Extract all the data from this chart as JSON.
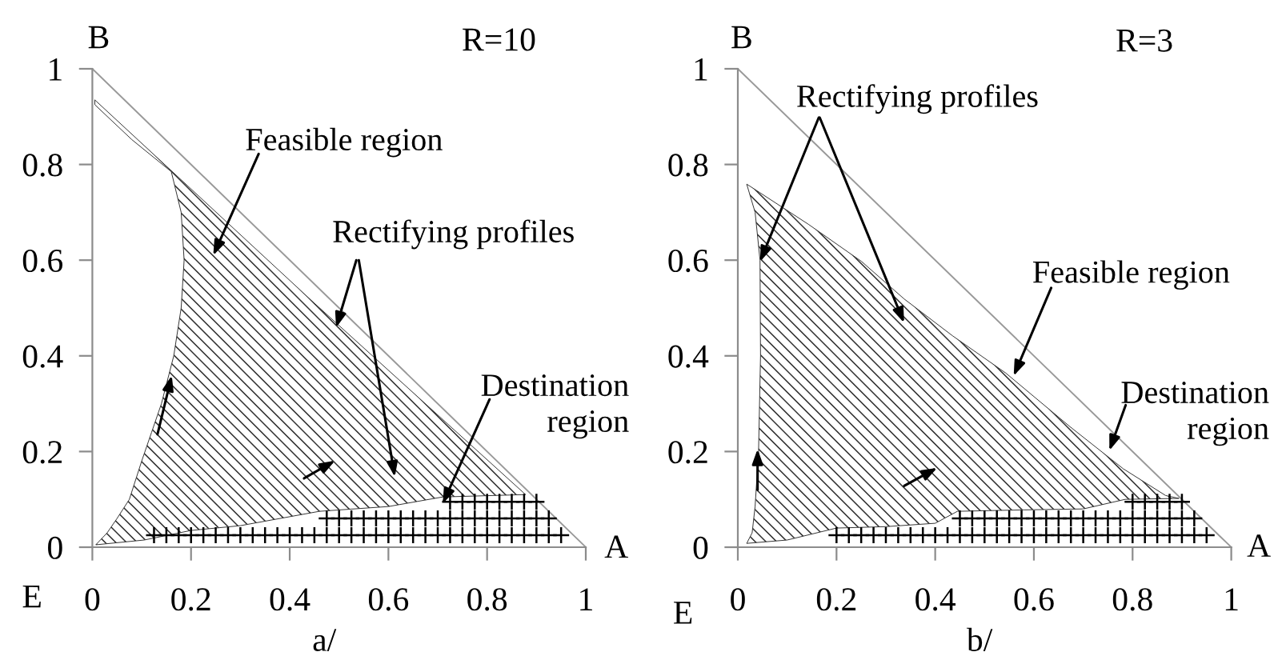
{
  "chart_data": [
    {
      "type": "line",
      "xlabel": "a/",
      "xlim": [
        0,
        1
      ],
      "ylim": [
        0,
        1
      ],
      "xticks": [
        0,
        0.2,
        0.4,
        0.6,
        0.8,
        1
      ],
      "yticks": [
        0,
        0.2,
        0.4,
        0.6,
        0.8,
        1
      ],
      "annotations": [
        "B",
        "R=10",
        "A",
        "E",
        "Feasible region",
        {
          "text": "Rectifying profiles",
          "x": 0.494,
          "y": 0.459
        },
        {
          "text": "Destination\nregion",
          "x": 0.71,
          "y": 0.091
        }
      ],
      "series": [
        {
          "color": "#999999",
          "x": [
            0,
            1
          ],
          "values": [
            1,
            0
          ]
        },
        {
          "type": "area",
          "color": "#303030",
          "x": [
            0.007,
            0.03,
            0.05,
            0.075,
            0.1,
            0.12,
            0.14,
            0.165,
            0.18,
            0.186,
            0.18,
            0.16,
            0.08,
            0.005,
            0.005,
            0.45,
            0.878,
            0.71,
            0.6,
            0.46,
            0.3,
            0.2,
            0.105
          ],
          "values": [
            0.005,
            0.03,
            0.06,
            0.1,
            0.18,
            0.24,
            0.3,
            0.4,
            0.5,
            0.6,
            0.7,
            0.785,
            0.852,
            0.925,
            0.935,
            0.51,
            0.11,
            0.105,
            0.085,
            0.075,
            0.045,
            0.035,
            0.015
          ]
        },
        {
          "type": "scatter",
          "color": "#000000",
          "marker": "cross",
          "x": [
            0.125,
            0.15,
            0.175,
            0.2,
            0.225,
            0.25,
            0.275,
            0.3,
            0.325,
            0.35,
            0.375,
            0.4,
            0.425,
            0.45,
            0.475,
            0.5,
            0.525,
            0.55,
            0.575,
            0.6,
            0.625,
            0.65,
            0.675,
            0.7,
            0.725,
            0.75,
            0.775,
            0.8,
            0.825,
            0.85,
            0.875,
            0.9,
            0.925,
            0.95,
            0.475,
            0.5,
            0.525,
            0.55,
            0.575,
            0.6,
            0.625,
            0.65,
            0.675,
            0.7,
            0.725,
            0.75,
            0.775,
            0.8,
            0.825,
            0.85,
            0.875,
            0.9,
            0.925,
            0.725,
            0.75,
            0.775,
            0.8,
            0.825,
            0.85,
            0.875,
            0.9
          ],
          "values": [
            0.025,
            0.025,
            0.025,
            0.025,
            0.025,
            0.025,
            0.025,
            0.025,
            0.025,
            0.025,
            0.025,
            0.025,
            0.025,
            0.025,
            0.025,
            0.025,
            0.025,
            0.025,
            0.025,
            0.025,
            0.025,
            0.025,
            0.025,
            0.025,
            0.025,
            0.025,
            0.025,
            0.025,
            0.025,
            0.025,
            0.025,
            0.025,
            0.025,
            0.025,
            0.06,
            0.06,
            0.06,
            0.06,
            0.06,
            0.06,
            0.06,
            0.06,
            0.06,
            0.06,
            0.06,
            0.06,
            0.06,
            0.06,
            0.06,
            0.06,
            0.06,
            0.06,
            0.06,
            0.095,
            0.095,
            0.095,
            0.095,
            0.095,
            0.095,
            0.095,
            0.095
          ]
        }
      ]
    },
    {
      "type": "line",
      "xlabel": "b/",
      "xlim": [
        0,
        1
      ],
      "ylim": [
        0,
        1
      ],
      "xticks": [
        0,
        0.2,
        0.4,
        0.6,
        0.8,
        1
      ],
      "yticks": [
        0,
        0.2,
        0.4,
        0.6,
        0.8,
        1
      ],
      "annotations": [
        "B",
        "R=3",
        "A",
        "E",
        {
          "text": "Rectifying profiles",
          "x": 0.045,
          "y": 0.597
        },
        {
          "text": "Feasible region",
          "x": 0.559,
          "y": 0.358
        },
        {
          "text": "Destination\nregion",
          "x": 0.753,
          "y": 0.202
        }
      ],
      "series": [
        {
          "color": "#999999",
          "x": [
            0,
            1
          ],
          "values": [
            1,
            0
          ]
        },
        {
          "type": "area",
          "color": "#303030",
          "x": [
            0.018,
            0.029,
            0.035,
            0.042,
            0.046,
            0.045,
            0.035,
            0.018,
            0.143,
            0.251,
            0.337,
            0.435,
            0.543,
            0.673,
            0.781,
            0.867,
            0.894,
            0.785,
            0.7,
            0.58,
            0.445,
            0.4,
            0.3,
            0.2,
            0.1
          ],
          "values": [
            0.008,
            0.03,
            0.085,
            0.2,
            0.4,
            0.6,
            0.7,
            0.759,
            0.675,
            0.597,
            0.519,
            0.442,
            0.364,
            0.252,
            0.164,
            0.108,
            0.102,
            0.1,
            0.08,
            0.078,
            0.075,
            0.05,
            0.043,
            0.04,
            0.015
          ]
        },
        {
          "type": "scatter",
          "color": "#000000",
          "marker": "cross",
          "x": [
            0.2,
            0.225,
            0.25,
            0.275,
            0.3,
            0.325,
            0.35,
            0.375,
            0.4,
            0.425,
            0.45,
            0.475,
            0.5,
            0.525,
            0.55,
            0.575,
            0.6,
            0.625,
            0.65,
            0.675,
            0.7,
            0.725,
            0.75,
            0.775,
            0.8,
            0.825,
            0.85,
            0.875,
            0.9,
            0.925,
            0.95,
            0.45,
            0.475,
            0.5,
            0.525,
            0.55,
            0.575,
            0.6,
            0.625,
            0.65,
            0.675,
            0.7,
            0.725,
            0.75,
            0.775,
            0.8,
            0.825,
            0.85,
            0.875,
            0.9,
            0.925,
            0.8,
            0.825,
            0.85,
            0.875,
            0.9
          ],
          "values": [
            0.025,
            0.025,
            0.025,
            0.025,
            0.025,
            0.025,
            0.025,
            0.025,
            0.025,
            0.025,
            0.025,
            0.025,
            0.025,
            0.025,
            0.025,
            0.025,
            0.025,
            0.025,
            0.025,
            0.025,
            0.025,
            0.025,
            0.025,
            0.025,
            0.025,
            0.025,
            0.025,
            0.025,
            0.025,
            0.025,
            0.025,
            0.06,
            0.06,
            0.06,
            0.06,
            0.06,
            0.06,
            0.06,
            0.06,
            0.06,
            0.06,
            0.06,
            0.06,
            0.06,
            0.06,
            0.06,
            0.06,
            0.06,
            0.06,
            0.06,
            0.06,
            0.095,
            0.095,
            0.095,
            0.095,
            0.095
          ]
        }
      ]
    }
  ]
}
